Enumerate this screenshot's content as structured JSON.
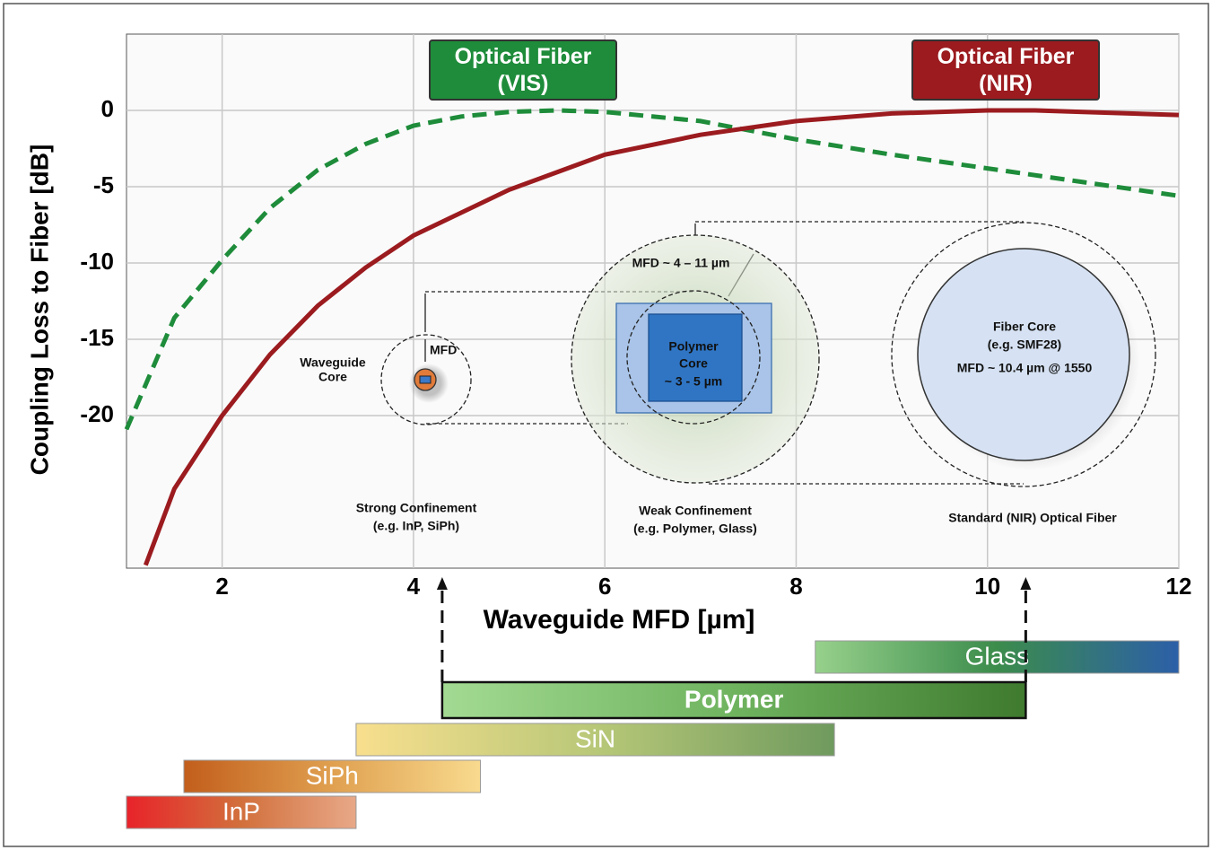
{
  "chart_data": {
    "type": "line",
    "xlabel": "Waveguide MFD [µm]",
    "ylabel": "Coupling Loss to Fiber [dB]",
    "xlim": [
      1,
      12
    ],
    "xticks": [
      2,
      4,
      6,
      8,
      10,
      12
    ],
    "ylim": [
      -30,
      5
    ],
    "yticks": [
      0,
      -5,
      -10,
      -15,
      -20
    ],
    "grid": true,
    "series": [
      {
        "name": "Optical Fiber (VIS)",
        "color": "#1e8c3a",
        "dashed": true,
        "x": [
          1,
          1.5,
          2,
          2.5,
          3,
          3.5,
          4,
          4.5,
          5,
          5.5,
          6,
          7,
          8,
          9,
          10,
          11,
          12
        ],
        "values": [
          -20.9,
          -13.6,
          -9.8,
          -6.4,
          -3.9,
          -2.2,
          -1,
          -0.4,
          -0.1,
          0,
          -0.1,
          -0.7,
          -1.9,
          -2.9,
          -3.8,
          -4.7,
          -5.6
        ]
      },
      {
        "name": "Optical Fiber (NIR)",
        "color": "#9b1b1f",
        "dashed": false,
        "x": [
          1.2,
          1.5,
          2,
          2.5,
          3,
          3.5,
          4,
          5,
          6,
          7,
          8,
          9,
          10,
          10.5,
          11,
          12
        ],
        "values": [
          -29.8,
          -24.8,
          -20,
          -16,
          -12.8,
          -10.3,
          -8.2,
          -5.2,
          -2.9,
          -1.6,
          -0.7,
          -0.2,
          0,
          0,
          -0.1,
          -0.3
        ]
      }
    ],
    "ranges": [
      {
        "name": "Glass",
        "start": 8.2,
        "end": 12,
        "colors": [
          "#97d18c",
          "#3c8c4c",
          "#2c5fa8"
        ],
        "bold": false,
        "outline": false
      },
      {
        "name": "Polymer",
        "start": 4.3,
        "end": 10.4,
        "colors": [
          "#a3da93",
          "#6fb35f",
          "#3f7a2f"
        ],
        "bold": true,
        "outline": true
      },
      {
        "name": "SiN",
        "start": 3.4,
        "end": 8.4,
        "colors": [
          "#f8df8e",
          "#b8c878",
          "#6f9a5e"
        ],
        "bold": false,
        "outline": false
      },
      {
        "name": "SiPh",
        "start": 1.6,
        "end": 4.7,
        "colors": [
          "#c25e1c",
          "#e0a050",
          "#f8da8e"
        ],
        "bold": false,
        "outline": false
      },
      {
        "name": "InP",
        "start": 1,
        "end": 3.4,
        "colors": [
          "#e8232a",
          "#d2703c",
          "#e8a888"
        ],
        "bold": false,
        "outline": false
      }
    ],
    "annotations": {
      "waveguide_core": [
        "Waveguide",
        "Core"
      ],
      "mfd": "MFD",
      "polymer_core": [
        "Polymer",
        "Core"
      ],
      "polymer_size": "~ 3 - 5 µm",
      "mfd_range": "MFD ~ 4 – 11 µm",
      "fiber_core": [
        "Fiber Core",
        "(e.g. SMF28)"
      ],
      "fiber_mfd": "MFD ~ 10.4 µm @ 1550",
      "strong": [
        "Strong Confinement",
        "(e.g. InP, SiPh)"
      ],
      "weak": [
        "Weak Confinement",
        "(e.g. Polymer, Glass)"
      ],
      "standard": "Standard (NIR) Optical Fiber"
    }
  }
}
